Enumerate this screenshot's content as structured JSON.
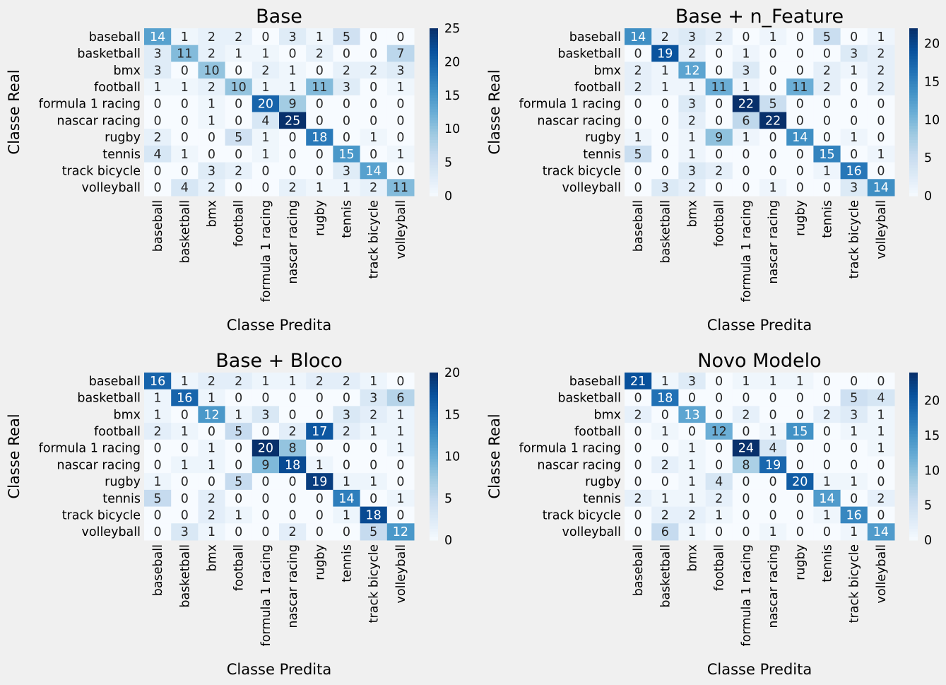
{
  "labels": [
    "baseball",
    "basketball",
    "bmx",
    "football",
    "formula 1 racing",
    "nascar racing",
    "rugby",
    "tennis",
    "track bicycle",
    "volleyball"
  ],
  "xlabel": "Classe Predita",
  "ylabel": "Classe Real",
  "colormap": {
    "name": "Blues",
    "low": "#f7fbff",
    "high": "#08306b"
  },
  "chart_data": [
    {
      "type": "heatmap",
      "title": "Base",
      "vmin": 0,
      "vmax": 25,
      "colorbar_ticks": [
        0,
        5,
        10,
        15,
        20,
        25
      ],
      "matrix": [
        [
          14,
          1,
          2,
          2,
          0,
          3,
          1,
          5,
          0,
          0
        ],
        [
          3,
          11,
          2,
          1,
          1,
          0,
          2,
          0,
          0,
          7
        ],
        [
          3,
          0,
          10,
          0,
          2,
          1,
          0,
          2,
          2,
          3
        ],
        [
          1,
          1,
          2,
          10,
          1,
          1,
          11,
          3,
          0,
          1
        ],
        [
          0,
          0,
          1,
          0,
          20,
          9,
          0,
          0,
          0,
          0
        ],
        [
          0,
          0,
          1,
          0,
          4,
          25,
          0,
          0,
          0,
          0
        ],
        [
          2,
          0,
          0,
          5,
          1,
          0,
          18,
          0,
          1,
          0
        ],
        [
          4,
          1,
          0,
          0,
          1,
          0,
          0,
          15,
          0,
          1
        ],
        [
          0,
          0,
          3,
          2,
          0,
          0,
          0,
          3,
          14,
          0
        ],
        [
          0,
          4,
          2,
          0,
          0,
          2,
          1,
          1,
          2,
          11
        ]
      ]
    },
    {
      "type": "heatmap",
      "title": "Base + n_Feature",
      "vmin": 0,
      "vmax": 22,
      "colorbar_ticks": [
        0,
        5,
        10,
        15,
        20
      ],
      "matrix": [
        [
          14,
          2,
          3,
          2,
          0,
          1,
          0,
          5,
          0,
          1
        ],
        [
          0,
          19,
          2,
          0,
          1,
          0,
          0,
          0,
          3,
          2
        ],
        [
          2,
          1,
          12,
          0,
          3,
          0,
          0,
          2,
          1,
          2
        ],
        [
          2,
          1,
          1,
          11,
          1,
          0,
          11,
          2,
          0,
          2
        ],
        [
          0,
          0,
          3,
          0,
          22,
          5,
          0,
          0,
          0,
          0
        ],
        [
          0,
          0,
          2,
          0,
          6,
          22,
          0,
          0,
          0,
          0
        ],
        [
          1,
          0,
          1,
          9,
          1,
          0,
          14,
          0,
          1,
          0
        ],
        [
          5,
          0,
          1,
          0,
          0,
          0,
          0,
          15,
          0,
          1
        ],
        [
          0,
          0,
          3,
          2,
          0,
          0,
          0,
          1,
          16,
          0
        ],
        [
          0,
          3,
          2,
          0,
          0,
          1,
          0,
          0,
          3,
          14
        ]
      ]
    },
    {
      "type": "heatmap",
      "title": "Base + Bloco",
      "vmin": 0,
      "vmax": 20,
      "colorbar_ticks": [
        0,
        5,
        10,
        15,
        20
      ],
      "matrix": [
        [
          16,
          1,
          2,
          2,
          1,
          1,
          2,
          2,
          1,
          0
        ],
        [
          1,
          16,
          1,
          0,
          0,
          0,
          0,
          0,
          3,
          6
        ],
        [
          1,
          0,
          12,
          1,
          3,
          0,
          0,
          3,
          2,
          1
        ],
        [
          2,
          1,
          0,
          5,
          0,
          2,
          17,
          2,
          1,
          1
        ],
        [
          0,
          0,
          1,
          0,
          20,
          8,
          0,
          0,
          0,
          1
        ],
        [
          0,
          1,
          1,
          0,
          9,
          18,
          1,
          0,
          0,
          0
        ],
        [
          1,
          0,
          0,
          5,
          0,
          0,
          19,
          1,
          1,
          0
        ],
        [
          5,
          0,
          2,
          0,
          0,
          0,
          0,
          14,
          0,
          1
        ],
        [
          0,
          0,
          2,
          1,
          0,
          0,
          0,
          1,
          18,
          0
        ],
        [
          0,
          3,
          1,
          0,
          0,
          2,
          0,
          0,
          5,
          12
        ]
      ]
    },
    {
      "type": "heatmap",
      "title": "Novo Modelo",
      "vmin": 0,
      "vmax": 24,
      "colorbar_ticks": [
        0,
        5,
        10,
        15,
        20
      ],
      "matrix": [
        [
          21,
          1,
          3,
          0,
          1,
          1,
          1,
          0,
          0,
          0
        ],
        [
          0,
          18,
          0,
          0,
          0,
          0,
          0,
          0,
          5,
          4
        ],
        [
          2,
          0,
          13,
          0,
          2,
          0,
          0,
          2,
          3,
          1
        ],
        [
          0,
          1,
          0,
          12,
          0,
          1,
          15,
          0,
          1,
          1
        ],
        [
          0,
          0,
          1,
          0,
          24,
          4,
          0,
          0,
          0,
          1
        ],
        [
          0,
          2,
          1,
          0,
          8,
          19,
          0,
          0,
          0,
          0
        ],
        [
          0,
          0,
          1,
          4,
          0,
          0,
          20,
          1,
          1,
          0
        ],
        [
          2,
          1,
          1,
          2,
          0,
          0,
          0,
          14,
          0,
          2
        ],
        [
          0,
          2,
          2,
          1,
          0,
          0,
          0,
          1,
          16,
          0
        ],
        [
          0,
          6,
          1,
          0,
          0,
          1,
          0,
          0,
          1,
          14
        ]
      ]
    }
  ]
}
